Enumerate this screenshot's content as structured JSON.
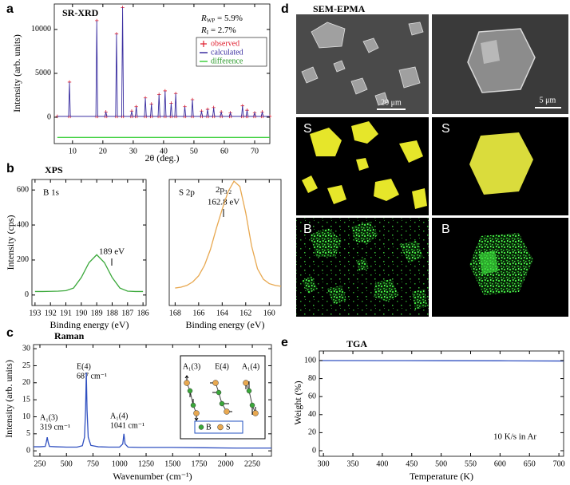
{
  "chart_data": [
    {
      "type": "line",
      "panel": "a",
      "title": "SR-XRD",
      "xlabel": "2θ (deg.)",
      "ylabel": "Intensity (arb. units)",
      "annotations": [
        {
          "text": "R",
          "sub": "WP",
          "rest": " = 5.9%"
        },
        {
          "text": "R",
          "sub": "I",
          "rest": " = 2.7%"
        }
      ],
      "xlim": [
        4,
        75
      ],
      "xticks": [
        10,
        20,
        30,
        40,
        50,
        60,
        70
      ],
      "ylim": [
        -3000,
        12900
      ],
      "yticks": [
        0,
        5000,
        10000
      ],
      "series": [
        {
          "name": "observed",
          "color": "#e02030",
          "marker": "+",
          "x": [
            5,
            8.7,
            9,
            9.3,
            17.7,
            18,
            18.3,
            20.7,
            21,
            21.3,
            24.2,
            24.5,
            24.8,
            26.2,
            26.5,
            26.8,
            29.2,
            29.5,
            29.8,
            30.7,
            31,
            31.3,
            33.7,
            34,
            34.3,
            35.7,
            36,
            36.3,
            38.2,
            38.5,
            38.8,
            40.2,
            40.5,
            40.8,
            42.2,
            42.5,
            42.8,
            43.7,
            44,
            44.3,
            46.7,
            47,
            47.3,
            49.2,
            49.5,
            49.8,
            52.2,
            52.5,
            52.8,
            54.2,
            54.5,
            54.8,
            56.2,
            56.5,
            56.8,
            58.7,
            59,
            59.3,
            61.7,
            62,
            62.3,
            65.7,
            66,
            66.3,
            67.2,
            67.5,
            67.8,
            69.7,
            70,
            70.3,
            72.2,
            72.5,
            72.8,
            75
          ],
          "values": [
            100,
            100,
            4000,
            100,
            100,
            11000,
            100,
            100,
            600,
            100,
            100,
            9500,
            100,
            100,
            12500,
            100,
            100,
            700,
            100,
            100,
            1200,
            100,
            100,
            2200,
            100,
            100,
            1500,
            100,
            100,
            2600,
            100,
            100,
            3000,
            100,
            100,
            1600,
            100,
            100,
            2700,
            100,
            100,
            1200,
            100,
            100,
            2000,
            100,
            100,
            700,
            100,
            100,
            900,
            100,
            100,
            1100,
            100,
            100,
            600,
            100,
            100,
            500,
            100,
            100,
            1300,
            100,
            100,
            800,
            100,
            100,
            500,
            100,
            100,
            600,
            100,
            100
          ]
        },
        {
          "name": "calculated",
          "color": "#3a2ea0",
          "x": [
            5,
            8.7,
            9,
            9.3,
            17.7,
            18,
            18.3,
            20.7,
            21,
            21.3,
            24.2,
            24.5,
            24.8,
            26.2,
            26.5,
            26.8,
            29.2,
            29.5,
            29.8,
            30.7,
            31,
            31.3,
            33.7,
            34,
            34.3,
            35.7,
            36,
            36.3,
            38.2,
            38.5,
            38.8,
            40.2,
            40.5,
            40.8,
            42.2,
            42.5,
            42.8,
            43.7,
            44,
            44.3,
            46.7,
            47,
            47.3,
            49.2,
            49.5,
            49.8,
            52.2,
            52.5,
            52.8,
            54.2,
            54.5,
            54.8,
            56.2,
            56.5,
            56.8,
            58.7,
            59,
            59.3,
            61.7,
            62,
            62.3,
            65.7,
            66,
            66.3,
            67.2,
            67.5,
            67.8,
            69.7,
            70,
            70.3,
            72.2,
            72.5,
            72.8,
            75
          ],
          "values": [
            100,
            100,
            4000,
            100,
            100,
            11000,
            100,
            100,
            600,
            100,
            100,
            9500,
            100,
            100,
            12500,
            100,
            100,
            700,
            100,
            100,
            1200,
            100,
            100,
            2200,
            100,
            100,
            1500,
            100,
            100,
            2600,
            100,
            100,
            3000,
            100,
            100,
            1600,
            100,
            100,
            2700,
            100,
            100,
            1200,
            100,
            100,
            2000,
            100,
            100,
            700,
            100,
            100,
            900,
            100,
            100,
            1100,
            100,
            100,
            600,
            100,
            100,
            500,
            100,
            100,
            1300,
            100,
            100,
            800,
            100,
            100,
            500,
            100,
            100,
            600,
            100,
            100
          ]
        },
        {
          "name": "difference",
          "color": "#40d040",
          "x": [
            5,
            75
          ],
          "values": [
            -2300,
            -2300
          ]
        }
      ]
    },
    {
      "type": "line",
      "panel": "b",
      "title": "XPS",
      "label": "B 1s",
      "annotations": [
        "189 eV"
      ],
      "xlabel": "Binding energy (eV)",
      "ylabel": "Intensity (cps)",
      "xlim": [
        193.2,
        185.8
      ],
      "xticks": [
        193,
        192,
        191,
        190,
        189,
        188,
        187,
        186
      ],
      "ylim": [
        -60,
        660
      ],
      "yticks": [
        0,
        200,
        400,
        600
      ],
      "series": [
        {
          "color": "#3aa83a",
          "x": [
            193,
            192.5,
            192,
            191.5,
            191,
            190.5,
            190,
            189.5,
            189,
            188.5,
            188,
            187.5,
            187,
            186.5,
            186
          ],
          "values": [
            20,
            20,
            21,
            22,
            25,
            40,
            100,
            185,
            230,
            185,
            100,
            40,
            22,
            20,
            20
          ]
        }
      ]
    },
    {
      "type": "line",
      "label": "S 2p",
      "annotations": [
        {
          "text": "2p",
          "sub": "3/2"
        },
        "162.8 eV"
      ],
      "xlabel": "Binding energy (eV)",
      "xlim": [
        168.5,
        159
      ],
      "xticks": [
        168,
        166,
        164,
        162,
        160
      ],
      "ylim": [
        -60,
        660
      ],
      "series": [
        {
          "color": "#e8a850",
          "x": [
            168,
            167.5,
            167,
            166.5,
            166,
            165.5,
            165,
            164.5,
            164,
            163.5,
            163,
            162.5,
            162,
            161.5,
            161,
            160.5,
            160,
            159.5,
            159
          ],
          "values": [
            40,
            45,
            55,
            75,
            110,
            170,
            260,
            380,
            490,
            590,
            650,
            620,
            470,
            280,
            150,
            90,
            65,
            55,
            50
          ]
        }
      ]
    },
    {
      "type": "line",
      "panel": "c",
      "title": "Raman",
      "xlabel": "Wavenumber (cm⁻¹)",
      "ylabel": "Intensity (arb. units)",
      "annotations": [
        [
          "A₁(3)",
          "319 cm⁻¹"
        ],
        [
          "E(4)",
          "687 cm⁻¹"
        ],
        [
          "A₁(4)",
          "1041 cm⁻¹"
        ]
      ],
      "inset": {
        "modes": [
          "A₁(3)",
          "E(4)",
          "A₁(4)"
        ],
        "legend": [
          "B",
          "S"
        ]
      },
      "xlim": [
        190,
        2430
      ],
      "xticks": [
        250,
        500,
        750,
        1000,
        1250,
        1500,
        1750,
        2000,
        2250
      ],
      "ylim": [
        -1.6,
        31.2
      ],
      "yticks": [
        0,
        5,
        10,
        15,
        20,
        25,
        30
      ],
      "series": [
        {
          "color": "#3050c0",
          "x": [
            190,
            250,
            300,
            310,
            319,
            328,
            340,
            400,
            500,
            600,
            650,
            670,
            680,
            687,
            694,
            705,
            730,
            800,
            900,
            1000,
            1030,
            1041,
            1052,
            1080,
            1200,
            1500,
            1800,
            2100,
            2430
          ],
          "values": [
            1.2,
            1.2,
            1.3,
            2.5,
            4,
            2.5,
            1.3,
            1.2,
            1.1,
            1.1,
            1.5,
            4,
            12,
            23,
            12,
            4,
            1.6,
            1.2,
            1.1,
            1.1,
            2,
            5,
            2,
            1.1,
            1,
            1,
            0.9,
            0.8,
            0.8
          ]
        }
      ]
    },
    {
      "type": "line",
      "panel": "e",
      "title": "TGA",
      "xlabel": "Temperature (K)",
      "ylabel": "Weight (%)",
      "annotations": [
        "10 K/s in Ar"
      ],
      "xlim": [
        293,
        708
      ],
      "xticks": [
        300,
        350,
        400,
        450,
        500,
        550,
        600,
        650,
        700
      ],
      "ylim": [
        -6.2,
        110.6
      ],
      "yticks": [
        0,
        20,
        40,
        60,
        80,
        100
      ],
      "series": [
        {
          "color": "#3050c0",
          "x": [
            293,
            400,
            500,
            600,
            700,
            708
          ],
          "values": [
            100,
            99.9,
            99.8,
            99.7,
            99.5,
            99.4
          ]
        }
      ]
    }
  ],
  "sem_epma": {
    "panel": "d",
    "title": "SEM-EPMA",
    "scale_bars": [
      "20 μm",
      "5 μm"
    ],
    "maps": [
      "S",
      "S",
      "B",
      "B"
    ]
  }
}
